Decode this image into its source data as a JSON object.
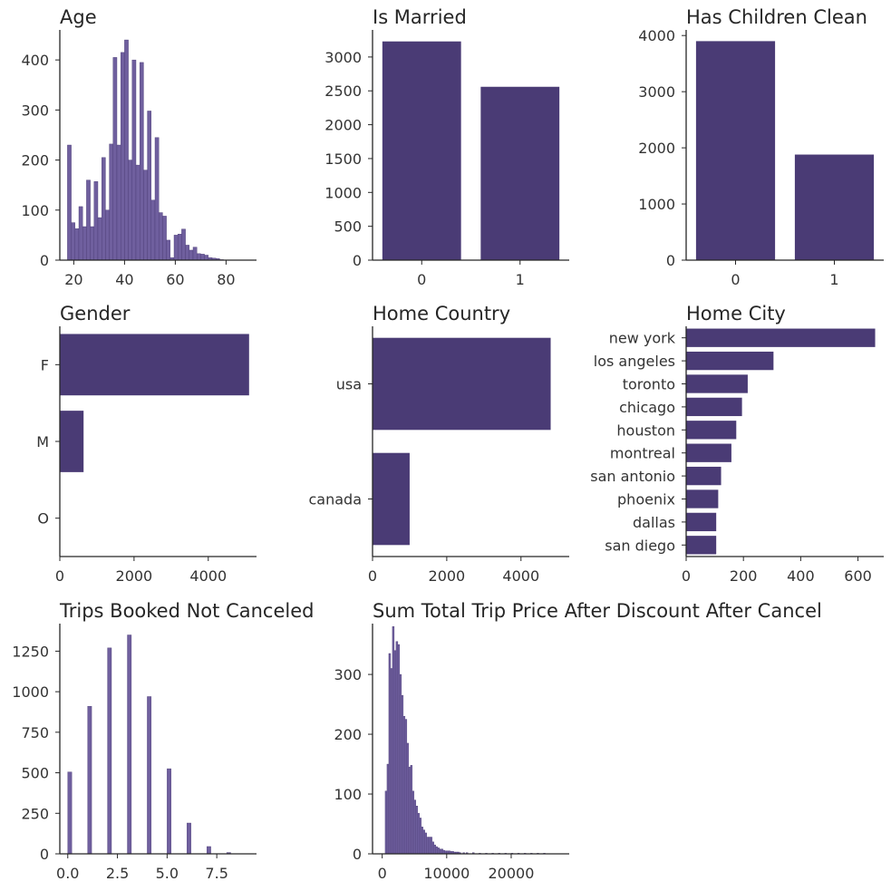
{
  "colors": {
    "bar": "#4a3b75",
    "hist": "#6f5f9e",
    "hist_edge": "#4a3b75",
    "axis": "#262626",
    "text": "#333333"
  },
  "chart_data": [
    {
      "id": "age",
      "type": "bar",
      "title": "Age",
      "orientation": "histogram",
      "xlim": [
        14.5,
        92
      ],
      "ylim": [
        0,
        460
      ],
      "xticks": [
        20,
        40,
        60,
        80
      ],
      "xtick_labels": [
        "20",
        "40",
        "60",
        "80"
      ],
      "yticks": [
        0,
        100,
        200,
        300,
        400
      ],
      "ytick_labels": [
        "0",
        "100",
        "200",
        "300",
        "400"
      ],
      "bin_width": 1.5,
      "bins": [
        [
          17.5,
          230
        ],
        [
          19,
          75
        ],
        [
          20.5,
          63
        ],
        [
          22,
          107
        ],
        [
          23.5,
          67
        ],
        [
          25,
          160
        ],
        [
          26.5,
          67
        ],
        [
          28,
          157
        ],
        [
          29.5,
          85
        ],
        [
          31,
          205
        ],
        [
          32.5,
          100
        ],
        [
          34,
          232
        ],
        [
          35.5,
          405
        ],
        [
          37,
          230
        ],
        [
          38.5,
          415
        ],
        [
          40,
          440
        ],
        [
          41.5,
          200
        ],
        [
          43,
          400
        ],
        [
          44.5,
          190
        ],
        [
          46,
          395
        ],
        [
          47.5,
          180
        ],
        [
          49,
          298
        ],
        [
          50.5,
          120
        ],
        [
          52,
          245
        ],
        [
          53.5,
          95
        ],
        [
          55,
          88
        ],
        [
          56.5,
          40
        ],
        [
          58,
          5
        ],
        [
          59.5,
          50
        ],
        [
          61,
          52
        ],
        [
          62.5,
          62
        ],
        [
          64,
          30
        ],
        [
          65.5,
          20
        ],
        [
          67,
          26
        ],
        [
          68.5,
          13
        ],
        [
          70,
          12
        ],
        [
          71.5,
          10
        ],
        [
          73,
          5
        ],
        [
          74.5,
          4
        ],
        [
          76,
          3
        ],
        [
          77.5,
          1
        ]
      ]
    },
    {
      "id": "is_married",
      "type": "bar",
      "title": "Is Married",
      "categories": [
        "0",
        "1"
      ],
      "values": [
        3230,
        2560
      ],
      "ylim": [
        0,
        3400
      ],
      "yticks": [
        0,
        500,
        1000,
        1500,
        2000,
        2500,
        3000
      ],
      "ytick_labels": [
        "0",
        "500",
        "1000",
        "1500",
        "2000",
        "2500",
        "3000"
      ]
    },
    {
      "id": "has_children",
      "type": "bar",
      "title": "Has Children Clean",
      "categories": [
        "0",
        "1"
      ],
      "values": [
        3900,
        1880
      ],
      "ylim": [
        0,
        4100
      ],
      "yticks": [
        0,
        1000,
        2000,
        3000,
        4000
      ],
      "ytick_labels": [
        "0",
        "1000",
        "2000",
        "3000",
        "4000"
      ]
    },
    {
      "id": "gender",
      "type": "bar",
      "orientation": "horizontal",
      "title": "Gender",
      "categories": [
        "F",
        "M",
        "O"
      ],
      "values": [
        5100,
        640,
        0
      ],
      "xlim": [
        0,
        5300
      ],
      "xticks": [
        0,
        2000,
        4000
      ],
      "xtick_labels": [
        "0",
        "2000",
        "4000"
      ]
    },
    {
      "id": "home_country",
      "type": "bar",
      "orientation": "horizontal",
      "title": "Home Country",
      "categories": [
        "usa",
        "canada"
      ],
      "values": [
        4800,
        1000
      ],
      "xlim": [
        0,
        5300
      ],
      "xticks": [
        0,
        2000,
        4000
      ],
      "xtick_labels": [
        "0",
        "2000",
        "4000"
      ]
    },
    {
      "id": "home_city",
      "type": "bar",
      "orientation": "horizontal",
      "title": "Home City",
      "categories": [
        "new york",
        "los angeles",
        "toronto",
        "chicago",
        "houston",
        "montreal",
        "san antonio",
        "phoenix",
        "dallas",
        "san diego"
      ],
      "values": [
        660,
        305,
        215,
        195,
        175,
        158,
        122,
        112,
        105,
        105
      ],
      "xlim": [
        0,
        690
      ],
      "xticks": [
        0,
        200,
        400,
        600
      ],
      "xtick_labels": [
        "0",
        "200",
        "400",
        "600"
      ]
    },
    {
      "id": "trips",
      "type": "bar",
      "title": "Trips Booked Not Canceled",
      "orientation": "histogram",
      "xlim": [
        -0.4,
        9.5
      ],
      "ylim": [
        0,
        1420
      ],
      "xticks": [
        0,
        2.5,
        5,
        7.5
      ],
      "xtick_labels": [
        "0.0",
        "2.5",
        "5.0",
        "7.5"
      ],
      "yticks": [
        0,
        250,
        500,
        750,
        1000,
        1250
      ],
      "ytick_labels": [
        "0",
        "250",
        "500",
        "750",
        "1000",
        "1250"
      ],
      "bin_width": 0.2,
      "bins": [
        [
          0,
          505
        ],
        [
          1,
          910
        ],
        [
          2,
          1270
        ],
        [
          3,
          1350
        ],
        [
          4,
          970
        ],
        [
          5,
          525
        ],
        [
          6,
          190
        ],
        [
          7,
          45
        ],
        [
          8,
          8
        ]
      ]
    },
    {
      "id": "sum_total",
      "type": "bar",
      "title": "Sum Total Trip Price After Discount After Cancel",
      "orientation": "histogram",
      "xlim": [
        -1500,
        29000
      ],
      "ylim": [
        0,
        385
      ],
      "xticks": [
        0,
        10000,
        20000
      ],
      "xtick_labels": [
        "0",
        "10000",
        "20000"
      ],
      "yticks": [
        0,
        100,
        200,
        300
      ],
      "ytick_labels": [
        "0",
        "100",
        "200",
        "300"
      ],
      "bin_width": 280,
      "bins": [
        [
          460,
          105
        ],
        [
          740,
          150
        ],
        [
          1020,
          335
        ],
        [
          1300,
          310
        ],
        [
          1580,
          380
        ],
        [
          1860,
          340
        ],
        [
          2140,
          355
        ],
        [
          2420,
          350
        ],
        [
          2700,
          300
        ],
        [
          2980,
          265
        ],
        [
          3260,
          230
        ],
        [
          3540,
          225
        ],
        [
          3820,
          185
        ],
        [
          4100,
          145
        ],
        [
          4380,
          148
        ],
        [
          4660,
          105
        ],
        [
          4940,
          90
        ],
        [
          5220,
          80
        ],
        [
          5500,
          68
        ],
        [
          5780,
          60
        ],
        [
          6060,
          45
        ],
        [
          6340,
          40
        ],
        [
          6620,
          35
        ],
        [
          6900,
          28
        ],
        [
          7180,
          28
        ],
        [
          7460,
          28
        ],
        [
          7740,
          20
        ],
        [
          8020,
          15
        ],
        [
          8300,
          12
        ],
        [
          8580,
          10
        ],
        [
          8860,
          8
        ],
        [
          9140,
          8
        ],
        [
          9420,
          6
        ],
        [
          9700,
          5
        ],
        [
          9980,
          5
        ],
        [
          10260,
          5
        ],
        [
          10540,
          4
        ],
        [
          10820,
          4
        ],
        [
          11100,
          3
        ],
        [
          11380,
          3
        ],
        [
          11660,
          3
        ],
        [
          11940,
          2
        ],
        [
          12500,
          2
        ],
        [
          13000,
          2
        ],
        [
          14000,
          2
        ],
        [
          15000,
          1
        ],
        [
          16000,
          1
        ],
        [
          17000,
          1
        ],
        [
          18000,
          1
        ],
        [
          19000,
          1
        ],
        [
          20000,
          1
        ],
        [
          21000,
          1
        ],
        [
          22000,
          1
        ],
        [
          23000,
          1
        ],
        [
          24000,
          1
        ],
        [
          25000,
          1
        ]
      ]
    }
  ]
}
